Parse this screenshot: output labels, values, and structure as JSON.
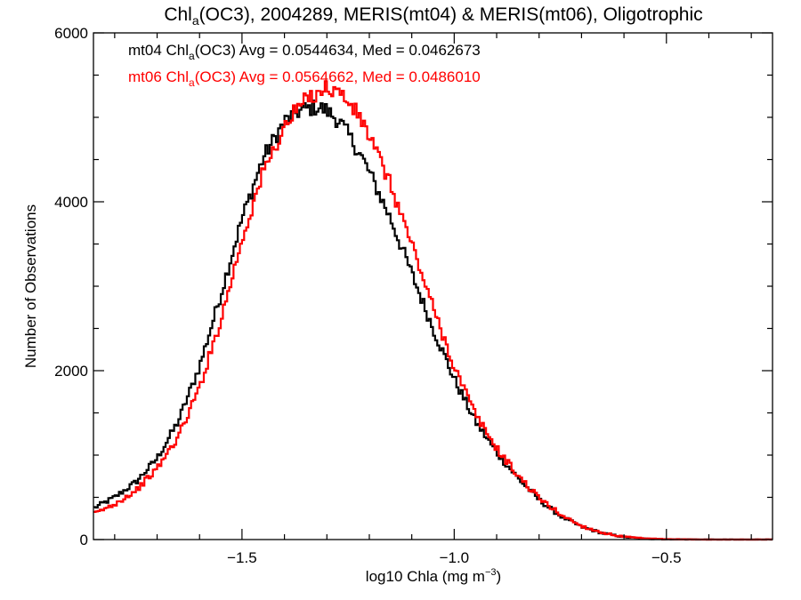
{
  "chart_data": {
    "type": "line",
    "title": {
      "prefix": "Chl",
      "sub": "a",
      "rest": "(OC3), 2004289, MERIS(mt04) & MERIS(mt06), Oligotrophic"
    },
    "xlabel": {
      "main": "log10 Chla (mg m",
      "sup": "−3",
      "close": ")"
    },
    "ylabel": "Number of Observations",
    "xlim": [
      -1.85,
      -0.25
    ],
    "ylim": [
      0,
      6000
    ],
    "x_ticks": [
      {
        "value": -1.5,
        "label": "−1.5"
      },
      {
        "value": -1.0,
        "label": "−1.0"
      },
      {
        "value": -0.5,
        "label": "−0.5"
      }
    ],
    "x_minor_step": 0.1,
    "y_ticks": [
      {
        "value": 0,
        "label": "0"
      },
      {
        "value": 2000,
        "label": "2000"
      },
      {
        "value": 4000,
        "label": "4000"
      },
      {
        "value": 6000,
        "label": "6000"
      }
    ],
    "y_minor_step": 500,
    "grid": false,
    "legend_position": "top-left",
    "series": [
      {
        "name": "mt04",
        "color": "#000000",
        "legend": {
          "prefix": "mt04 Chl",
          "sub": "a",
          "rest": "(OC3) Avg = 0.0544634, Med = 0.0462673"
        },
        "x": [
          -1.85,
          -1.8,
          -1.75,
          -1.7,
          -1.65,
          -1.6,
          -1.55,
          -1.5,
          -1.45,
          -1.4,
          -1.37,
          -1.35,
          -1.32,
          -1.3,
          -1.27,
          -1.25,
          -1.22,
          -1.2,
          -1.15,
          -1.1,
          -1.05,
          -1.0,
          -0.95,
          -0.9,
          -0.85,
          -0.8,
          -0.75,
          -0.7,
          -0.65,
          -0.6,
          -0.55,
          -0.5,
          -0.4,
          -0.25
        ],
        "values": [
          370,
          500,
          680,
          960,
          1400,
          2050,
          2900,
          3800,
          4520,
          4950,
          5060,
          5100,
          5120,
          5080,
          4950,
          4800,
          4550,
          4350,
          3800,
          3150,
          2500,
          1900,
          1400,
          1030,
          730,
          470,
          280,
          150,
          75,
          30,
          10,
          3,
          0,
          0
        ]
      },
      {
        "name": "mt06",
        "color": "#ff0000",
        "legend": {
          "prefix": "mt06 Chl",
          "sub": "a",
          "rest": "(OC3) Avg = 0.0564662, Med = 0.0486010"
        },
        "x": [
          -1.85,
          -1.8,
          -1.75,
          -1.7,
          -1.65,
          -1.6,
          -1.55,
          -1.5,
          -1.45,
          -1.4,
          -1.37,
          -1.35,
          -1.32,
          -1.3,
          -1.27,
          -1.25,
          -1.22,
          -1.2,
          -1.15,
          -1.1,
          -1.05,
          -1.0,
          -0.95,
          -0.9,
          -0.85,
          -0.8,
          -0.75,
          -0.7,
          -0.65,
          -0.6,
          -0.55,
          -0.5,
          -0.4,
          -0.25
        ],
        "values": [
          300,
          420,
          580,
          840,
          1220,
          1800,
          2600,
          3550,
          4350,
          4880,
          5100,
          5200,
          5310,
          5350,
          5300,
          5180,
          4980,
          4780,
          4200,
          3500,
          2750,
          2050,
          1480,
          1080,
          760,
          490,
          300,
          160,
          80,
          32,
          12,
          4,
          0,
          0
        ]
      }
    ]
  }
}
